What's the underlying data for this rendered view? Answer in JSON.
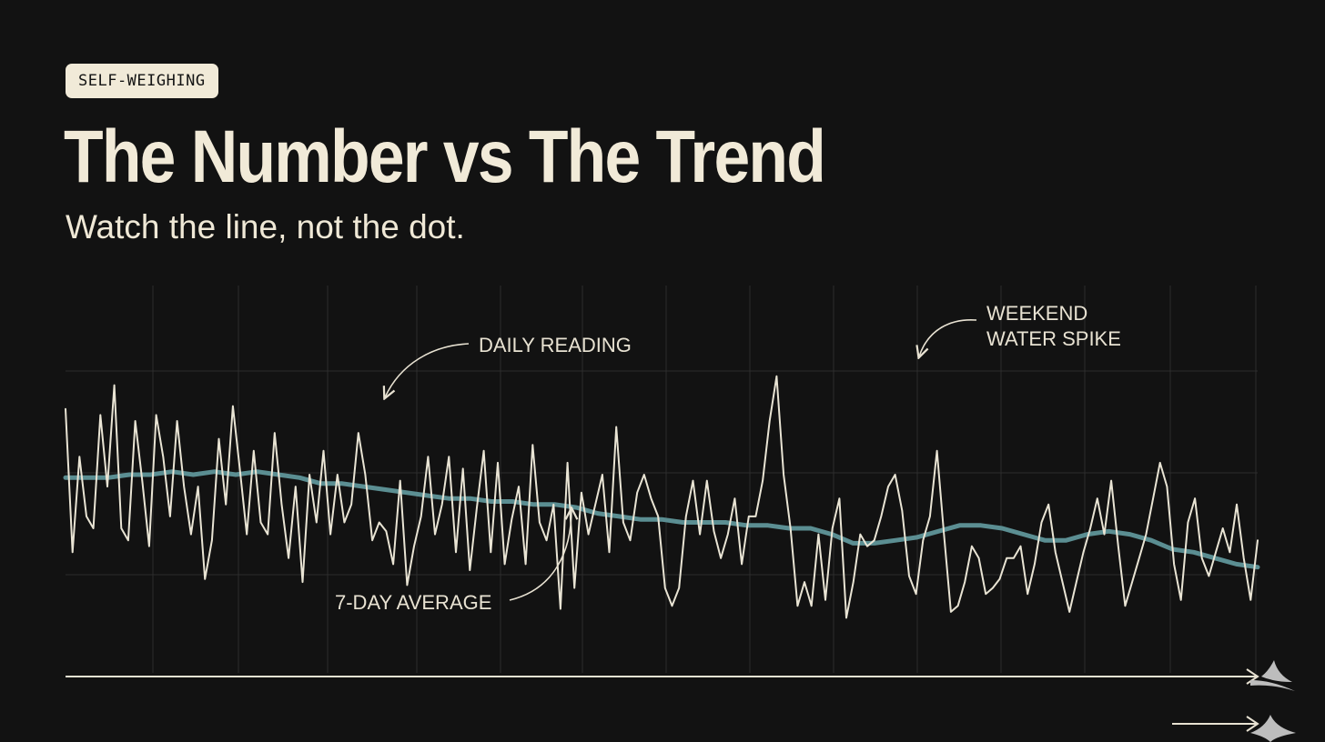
{
  "tag": "SELF-WEIGHING",
  "title": "The Number vs The Trend",
  "subtitle": "Watch the line, not the dot.",
  "annotations": {
    "daily": "DAILY READING",
    "average": "7-DAY AVERAGE",
    "spike_line1": "WEEKEND",
    "spike_line2": "WATER SPIKE"
  },
  "colors": {
    "background": "#121212",
    "daily_line": "#e9e4d4",
    "average_line": "#5b8e92",
    "grid": "#2c2c2c",
    "tag_bg": "#f1ead8"
  },
  "chart_data": {
    "type": "line",
    "title": "",
    "xlabel": "",
    "ylabel": "",
    "grid": true,
    "ylim": [
      0,
      100
    ],
    "series": [
      {
        "name": "DAILY READING",
        "values": [
          72,
          24,
          56,
          36,
          32,
          70,
          46,
          80,
          32,
          28,
          68,
          48,
          26,
          70,
          56,
          36,
          68,
          46,
          30,
          46,
          15,
          28,
          62,
          40,
          73,
          52,
          30,
          58,
          34,
          30,
          64,
          40,
          22,
          46,
          14,
          50,
          34,
          58,
          30,
          50,
          34,
          40,
          64,
          50,
          28,
          34,
          31,
          20,
          48,
          13,
          26,
          36,
          56,
          30,
          40,
          56,
          24,
          52,
          18,
          39,
          58,
          24,
          54,
          20,
          35,
          46,
          20,
          60,
          34,
          28,
          40,
          5,
          54,
          12,
          44,
          30,
          40,
          50,
          24,
          66,
          34,
          28,
          44,
          50,
          42,
          36,
          12,
          6,
          12,
          36,
          48,
          30,
          48,
          31,
          22,
          30,
          42,
          20,
          36,
          36,
          48,
          68,
          83,
          50,
          32,
          6,
          14,
          6,
          30,
          8,
          32,
          42,
          2,
          14,
          30,
          26,
          28,
          36,
          46,
          50,
          38,
          16,
          10,
          28,
          36,
          58,
          30,
          4,
          6,
          14,
          26,
          22,
          10,
          12,
          15,
          22,
          22,
          26,
          10,
          20,
          34,
          40,
          24,
          14,
          4,
          14,
          24,
          32,
          42,
          30,
          48,
          26,
          6,
          14,
          22,
          30,
          42,
          54,
          46,
          20,
          8,
          34,
          42,
          22,
          16,
          24,
          32,
          24,
          40,
          22,
          8,
          28
        ],
        "values_note": "",
        "color": "#e9e4d4"
      },
      {
        "name": "7-DAY AVERAGE",
        "values": [
          49,
          49,
          49,
          50,
          50,
          51,
          50,
          51,
          50,
          51,
          50,
          49,
          47,
          47,
          46,
          45,
          44,
          43,
          42,
          42,
          41,
          41,
          40,
          40,
          39,
          37,
          36,
          35,
          35,
          34,
          34,
          34,
          33,
          33,
          32,
          32,
          30,
          27,
          27,
          28,
          29,
          31,
          33,
          33,
          32,
          30,
          28,
          28,
          30,
          31,
          30,
          28,
          25,
          24,
          22,
          20,
          19
        ],
        "color": "#5b8e92"
      }
    ]
  }
}
